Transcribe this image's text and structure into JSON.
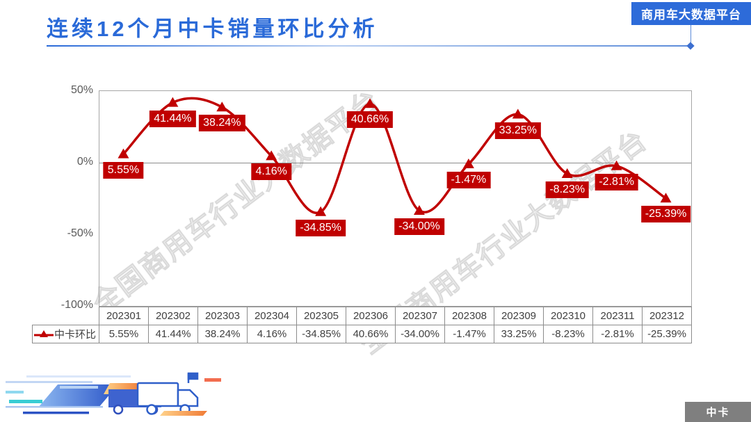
{
  "header": {
    "title": "连续12个月中卡销量环比分析",
    "badge": "商用车大数据平台"
  },
  "watermark": {
    "text": "全国商用车行业大数据平台"
  },
  "footer": {
    "category_badge": "中卡"
  },
  "colors": {
    "accent_blue": "#2d6bd9",
    "series_red": "#c00000",
    "label_bg": "#c00000",
    "badge_gray": "#7f7f7f",
    "axis_text": "#595959",
    "table_text": "#404040"
  },
  "chart_data": {
    "type": "line",
    "title": "连续12个月中卡销量环比分析",
    "categories": [
      "202301",
      "202302",
      "202303",
      "202304",
      "202305",
      "202306",
      "202307",
      "202308",
      "202309",
      "202310",
      "202311",
      "202312"
    ],
    "series": [
      {
        "name": "中卡环比",
        "values": [
          5.55,
          41.44,
          38.24,
          4.16,
          -34.85,
          40.66,
          -34.0,
          -1.47,
          33.25,
          -8.23,
          -2.81,
          -25.39
        ]
      }
    ],
    "value_format": "0.00%",
    "ylim": [
      -100,
      50
    ],
    "yticks": [
      {
        "value": 50,
        "label": "50%"
      },
      {
        "value": 0,
        "label": "0%"
      },
      {
        "value": -50,
        "label": "-50%"
      },
      {
        "value": -100,
        "label": "-100%"
      }
    ],
    "grid": "zero-line-only",
    "line_style": "smooth",
    "marker": "triangle-up",
    "data_labels": "below-point",
    "legend_position": "table-left"
  }
}
